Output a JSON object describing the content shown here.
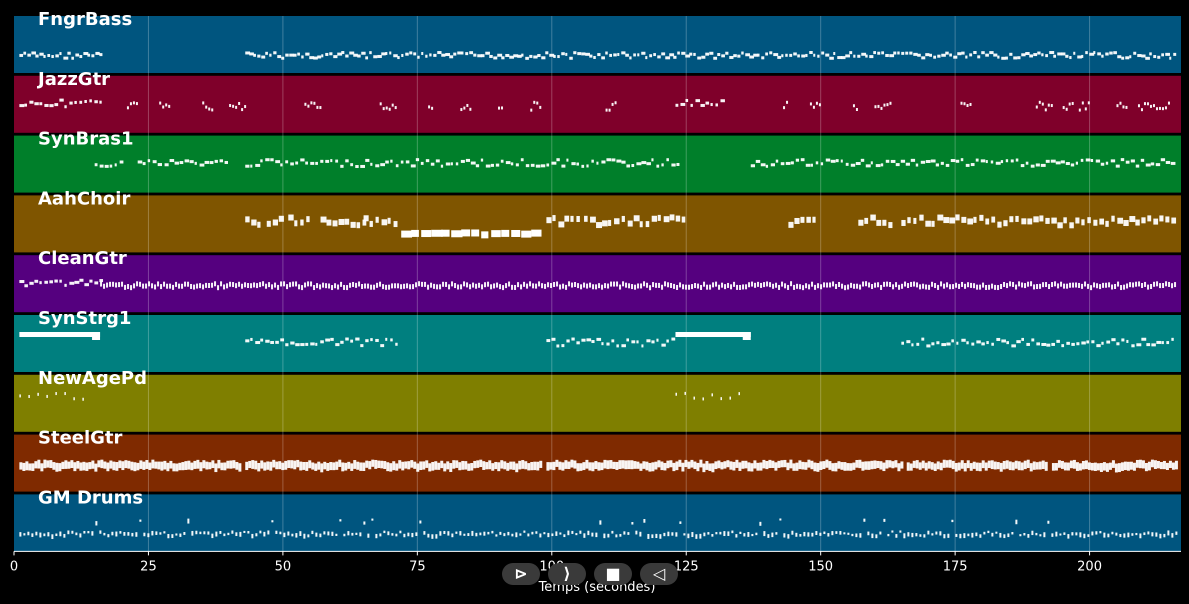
{
  "chart_data": {
    "type": "piano-roll",
    "xlabel": "Temps (secondes)",
    "xlim": [
      0,
      217
    ],
    "xticks": [
      0,
      25,
      50,
      75,
      100,
      125,
      150,
      175,
      200
    ],
    "grid": true,
    "tracks": [
      {
        "name": "FngrBass",
        "color": "#00557f",
        "segments": [
          [
            1,
            16,
            "bass"
          ],
          [
            43,
            216,
            "bass"
          ]
        ]
      },
      {
        "name": "JazzGtr",
        "color": "#7f002a",
        "segments": [
          [
            1,
            16,
            "line"
          ],
          [
            21,
            23,
            "blips"
          ],
          [
            27,
            29,
            "blips"
          ],
          [
            35,
            37,
            "blips"
          ],
          [
            40,
            43,
            "blips"
          ],
          [
            54,
            57,
            "blips"
          ],
          [
            68,
            71,
            "blips"
          ],
          [
            77,
            78,
            "blips"
          ],
          [
            83,
            85,
            "blips"
          ],
          [
            90,
            91,
            "blips"
          ],
          [
            96,
            98,
            "blips"
          ],
          [
            110,
            112,
            "blips"
          ],
          [
            123,
            132,
            "line"
          ],
          [
            143,
            144,
            "blips"
          ],
          [
            148,
            150,
            "blips"
          ],
          [
            156,
            157,
            "blips"
          ],
          [
            160,
            163,
            "blips"
          ],
          [
            176,
            178,
            "blips"
          ],
          [
            190,
            193,
            "blips"
          ],
          [
            195,
            197,
            "blips"
          ],
          [
            198,
            200,
            "blips"
          ],
          [
            205,
            207,
            "blips"
          ],
          [
            209,
            215,
            "blips"
          ]
        ]
      },
      {
        "name": "SynBras1",
        "color": "#007f2a",
        "segments": [
          [
            15,
            20,
            "line"
          ],
          [
            23,
            27,
            "line"
          ],
          [
            28,
            40,
            "line"
          ],
          [
            43,
            70,
            "line"
          ],
          [
            71,
            98,
            "line"
          ],
          [
            99,
            124,
            "line"
          ],
          [
            137,
            216,
            "line"
          ]
        ]
      },
      {
        "name": "AahChoir",
        "color": "#7f5500",
        "segments": [
          [
            43,
            46,
            "blocks"
          ],
          [
            47,
            50,
            "blocks"
          ],
          [
            51,
            55,
            "blocks"
          ],
          [
            57,
            65,
            "blocks"
          ],
          [
            65,
            71,
            "blocks"
          ],
          [
            72,
            98,
            "choir"
          ],
          [
            99,
            105,
            "blocks"
          ],
          [
            106,
            112,
            "blocks"
          ],
          [
            113,
            125,
            "blocks"
          ],
          [
            144,
            149,
            "blocks"
          ],
          [
            157,
            163,
            "blocks"
          ],
          [
            165,
            216,
            "blocks"
          ]
        ]
      },
      {
        "name": "CleanGtr",
        "color": "#55007f",
        "segments": [
          [
            1,
            16,
            "line"
          ],
          [
            16,
            216,
            "dense"
          ]
        ]
      },
      {
        "name": "SynStrg1",
        "color": "#007f7f",
        "segments": [
          [
            1,
            16,
            "thick"
          ],
          [
            43,
            71,
            "line"
          ],
          [
            99,
            123,
            "line"
          ],
          [
            123,
            137,
            "thick"
          ],
          [
            165,
            216,
            "line"
          ]
        ]
      },
      {
        "name": "NewAgePd",
        "color": "#7f7f00",
        "segments": [
          [
            1,
            13,
            "sparse"
          ],
          [
            123,
            136,
            "sparse"
          ]
        ]
      },
      {
        "name": "SteelGtr",
        "color": "#7f2a00",
        "segments": [
          [
            1,
            42,
            "steel"
          ],
          [
            43,
            98,
            "steel"
          ],
          [
            99,
            165,
            "steel"
          ],
          [
            166,
            192,
            "steel"
          ],
          [
            193,
            216,
            "steel"
          ]
        ]
      },
      {
        "name": "GM Drums",
        "color": "#00557f",
        "segments": [
          [
            1,
            216,
            "drums"
          ]
        ]
      }
    ]
  },
  "controls": {
    "rewind_label": "⊳",
    "play_label": "⟩",
    "stop_label": "■",
    "back_label": "◁"
  }
}
